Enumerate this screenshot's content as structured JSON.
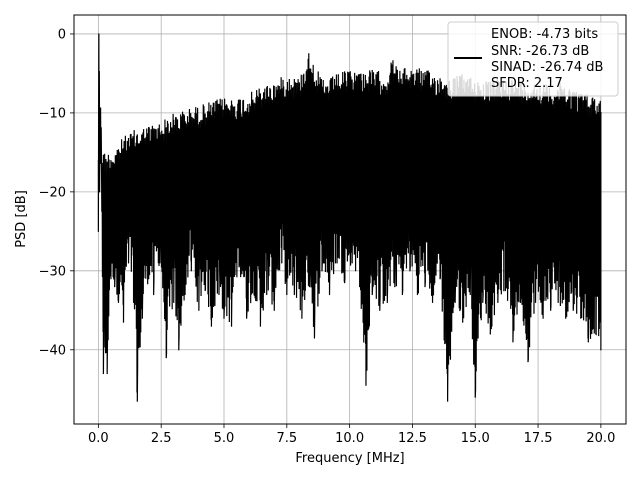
{
  "chart_data": {
    "type": "line",
    "title": "",
    "xlabel": "Frequency [MHz]",
    "ylabel": "PSD [dB]",
    "xlim": [
      -0.97,
      21.0
    ],
    "ylim": [
      -49.4,
      2.4
    ],
    "grid": true,
    "x_ticks": [
      0.0,
      2.5,
      5.0,
      7.5,
      10.0,
      12.5,
      15.0,
      17.5,
      20.0
    ],
    "x_tick_labels": [
      "0.0",
      "2.5",
      "5.0",
      "7.5",
      "10.0",
      "12.5",
      "15.0",
      "17.5",
      "20.0"
    ],
    "y_ticks": [
      0,
      -10,
      -20,
      -30,
      -40
    ],
    "y_tick_labels": [
      "0",
      "−10",
      "−20",
      "−30",
      "−40"
    ],
    "legend": {
      "placement": "upper-right",
      "entries": [
        "ENOB: -4.73 bits",
        "SNR: -26.73 dB",
        "SINAD: -26.74 dB",
        "SFDR: 2.17"
      ]
    },
    "series": [
      {
        "color": "#000000",
        "points": [
          [
            0.0,
            -25.0
          ],
          [
            0.02,
            0.0
          ],
          [
            0.05,
            -20.0
          ],
          [
            0.1,
            -14.0
          ],
          [
            0.2,
            -43.0
          ],
          [
            0.35,
            -43.0
          ],
          [
            0.5,
            -31.0
          ],
          [
            0.65,
            -32.0
          ],
          [
            0.8,
            -34.0
          ],
          [
            1.0,
            -36.5
          ],
          [
            1.2,
            -29.0
          ],
          [
            1.4,
            -34.0
          ],
          [
            1.55,
            -46.5
          ],
          [
            1.75,
            -36.0
          ],
          [
            2.0,
            -31.0
          ],
          [
            2.2,
            -33.0
          ],
          [
            2.45,
            -29.0
          ],
          [
            2.7,
            -41.0
          ],
          [
            3.0,
            -34.0
          ],
          [
            3.2,
            -40.0
          ],
          [
            3.45,
            -33.0
          ],
          [
            3.7,
            -30.0
          ],
          [
            4.0,
            -35.0
          ],
          [
            4.25,
            -32.5
          ],
          [
            4.5,
            -37.0
          ],
          [
            4.8,
            -33.0
          ],
          [
            5.0,
            -36.0
          ],
          [
            5.3,
            -37.0
          ],
          [
            5.6,
            -29.5
          ],
          [
            5.9,
            -36.0
          ],
          [
            6.2,
            -33.0
          ],
          [
            6.45,
            -37.0
          ],
          [
            6.7,
            -33.0
          ],
          [
            7.0,
            -35.0
          ],
          [
            7.3,
            -29.0
          ],
          [
            7.5,
            -33.0
          ],
          [
            7.8,
            -33.0
          ],
          [
            8.1,
            -36.0
          ],
          [
            8.4,
            -32.0
          ],
          [
            8.6,
            -38.5
          ],
          [
            8.9,
            -30.0
          ],
          [
            9.2,
            -33.0
          ],
          [
            9.5,
            -29.0
          ],
          [
            9.8,
            -31.5
          ],
          [
            10.1,
            -29.0
          ],
          [
            10.4,
            -32.0
          ],
          [
            10.65,
            -44.5
          ],
          [
            10.9,
            -33.0
          ],
          [
            11.2,
            -35.0
          ],
          [
            11.5,
            -34.0
          ],
          [
            11.8,
            -32.0
          ],
          [
            12.1,
            -33.0
          ],
          [
            12.4,
            -30.0
          ],
          [
            12.7,
            -33.0
          ],
          [
            13.0,
            -32.0
          ],
          [
            13.3,
            -34.0
          ],
          [
            13.6,
            -31.0
          ],
          [
            13.9,
            -46.5
          ],
          [
            14.2,
            -34.0
          ],
          [
            14.5,
            -36.5
          ],
          [
            14.8,
            -33.0
          ],
          [
            15.0,
            -46.0
          ],
          [
            15.3,
            -34.0
          ],
          [
            15.6,
            -38.0
          ],
          [
            15.9,
            -34.0
          ],
          [
            16.2,
            -32.5
          ],
          [
            16.5,
            -39.0
          ],
          [
            16.8,
            -34.0
          ],
          [
            17.1,
            -41.5
          ],
          [
            17.4,
            -34.0
          ],
          [
            17.7,
            -36.0
          ],
          [
            18.0,
            -35.0
          ],
          [
            18.3,
            -34.0
          ],
          [
            18.6,
            -36.0
          ],
          [
            18.9,
            -35.0
          ],
          [
            19.2,
            -36.0
          ],
          [
            19.5,
            -39.0
          ],
          [
            19.8,
            -38.0
          ],
          [
            20.0,
            -40.0
          ]
        ],
        "upper_envelope": [
          [
            0.0,
            -14.0
          ],
          [
            0.3,
            -15.0
          ],
          [
            0.6,
            -14.5
          ],
          [
            1.0,
            -13.0
          ],
          [
            1.5,
            -12.0
          ],
          [
            2.0,
            -11.5
          ],
          [
            2.5,
            -11.0
          ],
          [
            3.0,
            -10.0
          ],
          [
            3.5,
            -9.5
          ],
          [
            4.0,
            -9.0
          ],
          [
            4.5,
            -8.5
          ],
          [
            5.0,
            -8.0
          ],
          [
            5.5,
            -8.0
          ],
          [
            6.0,
            -7.5
          ],
          [
            6.5,
            -6.5
          ],
          [
            7.0,
            -6.0
          ],
          [
            7.5,
            -5.0
          ],
          [
            8.0,
            -5.5
          ],
          [
            8.4,
            -2.0
          ],
          [
            8.7,
            -4.5
          ],
          [
            9.0,
            -6.0
          ],
          [
            9.5,
            -5.0
          ],
          [
            10.0,
            -4.5
          ],
          [
            10.5,
            -4.5
          ],
          [
            11.0,
            -4.5
          ],
          [
            11.5,
            -5.0
          ],
          [
            11.7,
            -3.0
          ],
          [
            12.0,
            -4.5
          ],
          [
            12.5,
            -4.0
          ],
          [
            13.0,
            -4.5
          ],
          [
            13.5,
            -5.0
          ],
          [
            14.0,
            -5.5
          ],
          [
            14.5,
            -5.0
          ],
          [
            15.0,
            -5.5
          ],
          [
            15.5,
            -6.0
          ],
          [
            16.0,
            -5.5
          ],
          [
            16.5,
            -5.5
          ],
          [
            17.0,
            -6.0
          ],
          [
            17.5,
            -6.0
          ],
          [
            18.0,
            -6.5
          ],
          [
            18.5,
            -6.0
          ],
          [
            19.0,
            -7.0
          ],
          [
            19.5,
            -7.5
          ],
          [
            20.0,
            -8.0
          ]
        ]
      }
    ]
  }
}
